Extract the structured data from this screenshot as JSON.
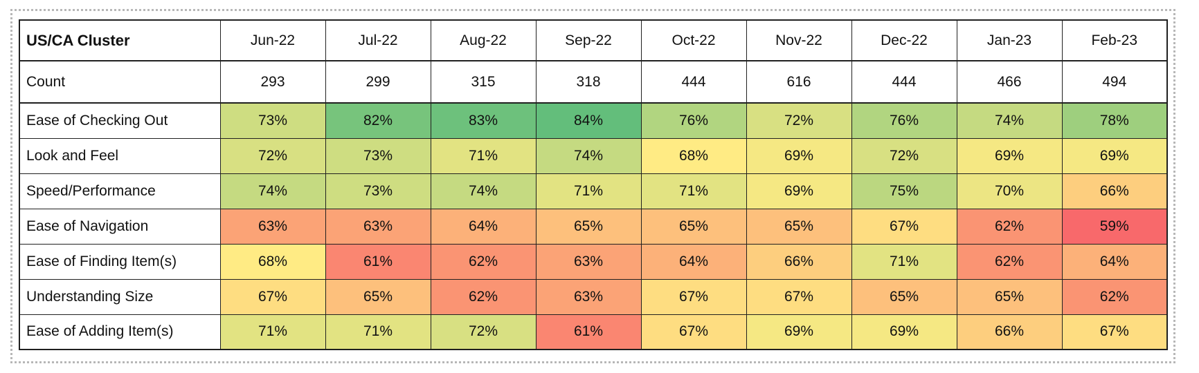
{
  "style_colors": {
    "background": "#ffffff",
    "marquee_dotted_border": "#b7b7b7",
    "table_grid": "#1f1f1f",
    "text": "#111111"
  },
  "chart_data": {
    "type": "heatmap",
    "title": "US/CA Cluster",
    "columns": [
      "Jun-22",
      "Jul-22",
      "Aug-22",
      "Sep-22",
      "Oct-22",
      "Nov-22",
      "Dec-22",
      "Jan-23",
      "Feb-23"
    ],
    "count_row": {
      "label": "Count",
      "values": [
        293,
        299,
        315,
        318,
        444,
        616,
        444,
        466,
        494
      ]
    },
    "rows": [
      {
        "label": "Ease of Checking Out",
        "values": [
          73,
          82,
          83,
          84,
          76,
          72,
          76,
          74,
          78
        ]
      },
      {
        "label": "Look and Feel",
        "values": [
          72,
          73,
          71,
          74,
          68,
          69,
          72,
          69,
          69
        ]
      },
      {
        "label": "Speed/Performance",
        "values": [
          74,
          73,
          74,
          71,
          71,
          69,
          75,
          70,
          66
        ]
      },
      {
        "label": "Ease of Navigation",
        "values": [
          63,
          63,
          64,
          65,
          65,
          65,
          67,
          62,
          59
        ]
      },
      {
        "label": "Ease of Finding Item(s)",
        "values": [
          68,
          61,
          62,
          63,
          64,
          66,
          71,
          62,
          64
        ]
      },
      {
        "label": "Understanding Size",
        "values": [
          67,
          65,
          62,
          63,
          67,
          67,
          65,
          65,
          62
        ]
      },
      {
        "label": "Ease of Adding Item(s)",
        "values": [
          71,
          71,
          72,
          61,
          67,
          69,
          69,
          66,
          67
        ]
      }
    ],
    "value_format": "percent",
    "value_suffix": "%",
    "color_scale": {
      "min": {
        "value": 59,
        "color": "#F8696B"
      },
      "mid": {
        "value": 68,
        "color": "#FFEB84"
      },
      "max": {
        "value": 84,
        "color": "#63BE7B"
      }
    },
    "legend": "none",
    "grid": "all-borders"
  }
}
